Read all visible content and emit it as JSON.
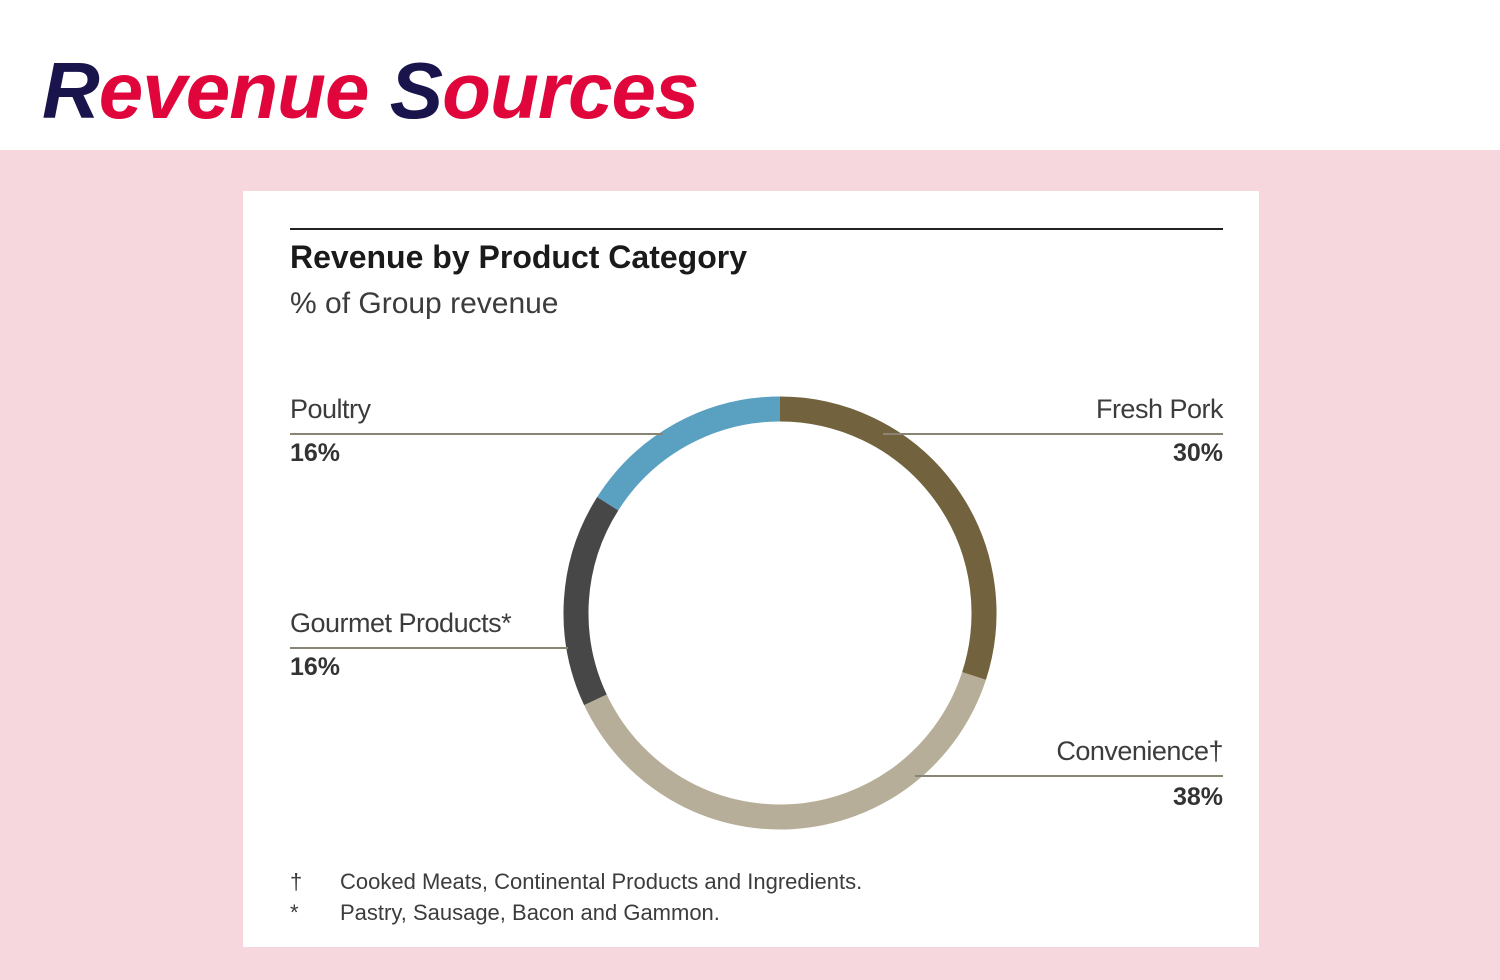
{
  "page": {
    "title_parts": [
      {
        "text": "R",
        "color": "#19154c"
      },
      {
        "text": "evenue ",
        "color": "#e0053b"
      },
      {
        "text": "S",
        "color": "#19154c"
      },
      {
        "text": "ources",
        "color": "#e0053b"
      }
    ]
  },
  "chart_data": {
    "type": "pie",
    "title": "Revenue by Product Category",
    "subtitle": "% of Group revenue",
    "start_angle_deg": 0,
    "direction": "clockwise",
    "slices": [
      {
        "label": "Fresh Pork",
        "value": 30,
        "value_label": "30%",
        "color": "#72633e"
      },
      {
        "label": "Convenience†",
        "value": 38,
        "value_label": "38%",
        "color": "#b7ae99"
      },
      {
        "label": "Gourmet Products*",
        "value": 16,
        "value_label": "16%",
        "color": "#474747"
      },
      {
        "label": "Poultry",
        "value": 16,
        "value_label": "16%",
        "color": "#5aa0c1"
      }
    ],
    "footnotes": [
      {
        "mark": "†",
        "text": "Cooked Meats, Continental Products and Ingredients."
      },
      {
        "mark": "*",
        "text": "Pastry, Sausage, Bacon and Gammon."
      }
    ]
  }
}
